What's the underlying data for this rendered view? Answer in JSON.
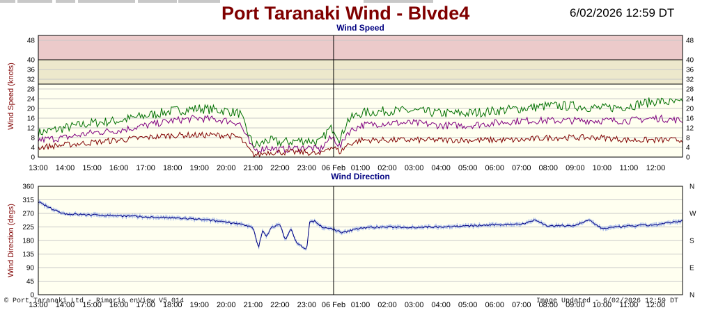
{
  "header": {
    "title": "Port Taranaki Wind - Blvde4",
    "datetime": "6/02/2026 12:59 DT"
  },
  "colors": {
    "title": "#800000",
    "plot_bg": "#fffff0",
    "band_red": "#eccaca",
    "band_yellow": "#ede8cc",
    "gust": "#007000",
    "mean": "#800080",
    "lull": "#800000",
    "direction": "#000080",
    "direction_range": "#8ea8e8",
    "axis_label": "#800000",
    "panel_title": "#000080"
  },
  "footer": {
    "left": "© Port Taranaki Ltd - Rimaris enView V5.014",
    "right": "Image Updated - 6/02/2026 12:59 DT"
  },
  "chart_data": [
    {
      "type": "line",
      "title": "Wind Speed",
      "ylabel": "Wind Speed (knots)",
      "ylim": [
        0,
        50
      ],
      "yticks": [
        0,
        4,
        8,
        12,
        16,
        20,
        24,
        28,
        32,
        36,
        40,
        48
      ],
      "x_tick_labels": [
        "13:00",
        "14:00",
        "15:00",
        "16:00",
        "17:00",
        "18:00",
        "19:00",
        "20:00",
        "21:00",
        "22:00",
        "23:00",
        "06 Feb",
        "01:00",
        "02:00",
        "03:00",
        "04:00",
        "05:00",
        "06:00",
        "07:00",
        "08:00",
        "09:00",
        "10:00",
        "11:00",
        "12:00"
      ],
      "x_hours": [
        0,
        1,
        2,
        3,
        4,
        5,
        6,
        7,
        7.5,
        8,
        8.25,
        8.5,
        9,
        10,
        10.5,
        10.8,
        11,
        11.25,
        11.5,
        12,
        13,
        14,
        15,
        16,
        17,
        18,
        19,
        20,
        21,
        22,
        23,
        24
      ],
      "bands": [
        {
          "from": 30,
          "to": 40,
          "color": "yellow"
        },
        {
          "from": 40,
          "to": 50,
          "color": "red"
        }
      ],
      "grid": true,
      "series": [
        {
          "color": "gust",
          "values": [
            10,
            12,
            14,
            15,
            17,
            19,
            20,
            19,
            18,
            5,
            5,
            7,
            6,
            7,
            6,
            11,
            12,
            7,
            15,
            18,
            19,
            19,
            18,
            18,
            19,
            20,
            21,
            21,
            20,
            21,
            23,
            22
          ]
        },
        {
          "color": "mean",
          "values": [
            7,
            8,
            10,
            11,
            13,
            15,
            16,
            15,
            14,
            3,
            3,
            4,
            3,
            4,
            3,
            7,
            8,
            4,
            10,
            13,
            14,
            14,
            13,
            13,
            14,
            15,
            15,
            15,
            15,
            15,
            16,
            15
          ]
        },
        {
          "color": "lull",
          "values": [
            4,
            5,
            6,
            7,
            8,
            9,
            9,
            9,
            8,
            1,
            1,
            2,
            2,
            2,
            1,
            4,
            4,
            2,
            5,
            7,
            7,
            7,
            7,
            7,
            7,
            7,
            8,
            8,
            8,
            7,
            7,
            7
          ]
        }
      ]
    },
    {
      "type": "line",
      "title": "Wind Direction",
      "ylabel": "Wind Direction (degs)",
      "ylim": [
        0,
        360
      ],
      "yticks": [
        0,
        45,
        90,
        135,
        180,
        225,
        270,
        315,
        360
      ],
      "right_ticks": [
        "N",
        "W",
        "S",
        "E",
        "N"
      ],
      "x_tick_labels": [
        "13:00",
        "14:00",
        "15:00",
        "16:00",
        "17:00",
        "18:00",
        "19:00",
        "20:00",
        "21:00",
        "22:00",
        "23:00",
        "06 Feb",
        "01:00",
        "02:00",
        "03:00",
        "04:00",
        "05:00",
        "06:00",
        "07:00",
        "08:00",
        "09:00",
        "10:00",
        "11:00",
        "12:00"
      ],
      "grid": true,
      "series": [
        {
          "color": "direction",
          "x_hours": [
            0,
            0.5,
            1,
            2,
            3,
            4,
            5,
            6,
            7,
            7.5,
            8,
            8.2,
            8.35,
            8.5,
            8.7,
            9,
            9.2,
            9.4,
            9.6,
            9.9,
            10,
            10.1,
            10.3,
            10.6,
            11,
            11.3,
            11.6,
            12,
            13,
            14,
            15,
            16,
            17,
            18,
            18.5,
            19,
            20,
            20.5,
            21,
            22,
            23,
            24
          ],
          "values": [
            308,
            285,
            268,
            265,
            262,
            258,
            255,
            250,
            242,
            235,
            222,
            155,
            212,
            195,
            225,
            232,
            182,
            220,
            175,
            155,
            148,
            240,
            245,
            222,
            218,
            205,
            212,
            222,
            225,
            224,
            226,
            228,
            232,
            235,
            248,
            228,
            230,
            248,
            220,
            228,
            232,
            245
          ]
        }
      ]
    }
  ]
}
